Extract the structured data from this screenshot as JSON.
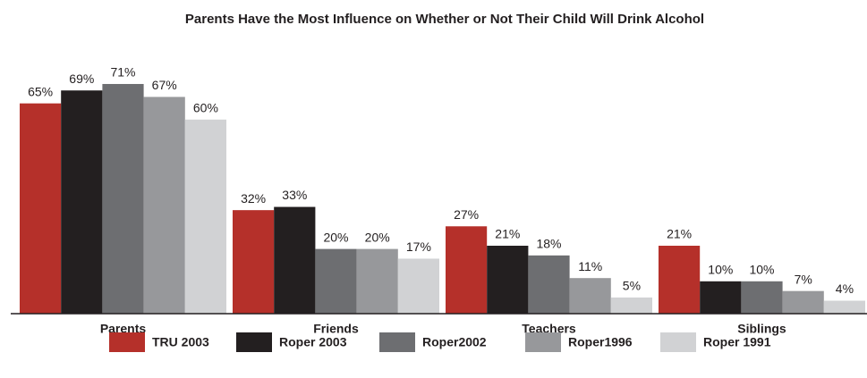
{
  "chart_data": {
    "type": "bar",
    "title": "Parents Have the Most Influence on Whether or Not Their Child Will Drink Alcohol",
    "categories": [
      "Parents",
      "Friends",
      "Teachers",
      "Siblings"
    ],
    "series": [
      {
        "name": "TRU 2003",
        "color": "#b5302a",
        "values": [
          65,
          32,
          27,
          21
        ],
        "value_labels": [
          "65%",
          "32%",
          "27%",
          "21%"
        ]
      },
      {
        "name": "Roper 2003",
        "color": "#231f20",
        "values": [
          69,
          33,
          21,
          10
        ],
        "value_labels": [
          "69%",
          "33%",
          "21%",
          "10%"
        ]
      },
      {
        "name": "Roper2002",
        "color": "#6d6e71",
        "values": [
          71,
          20,
          18,
          10
        ],
        "value_labels": [
          "71%",
          "20%",
          "18%",
          "10%"
        ]
      },
      {
        "name": "Roper1996",
        "color": "#97989b",
        "values": [
          67,
          20,
          11,
          7
        ],
        "value_labels": [
          "67%",
          "20%",
          "11%",
          "7%"
        ]
      },
      {
        "name": "Roper 1991",
        "color": "#d1d2d4",
        "values": [
          60,
          17,
          5,
          4
        ],
        "value_labels": [
          "60%",
          "17%",
          "5%",
          "4%"
        ]
      }
    ]
  }
}
